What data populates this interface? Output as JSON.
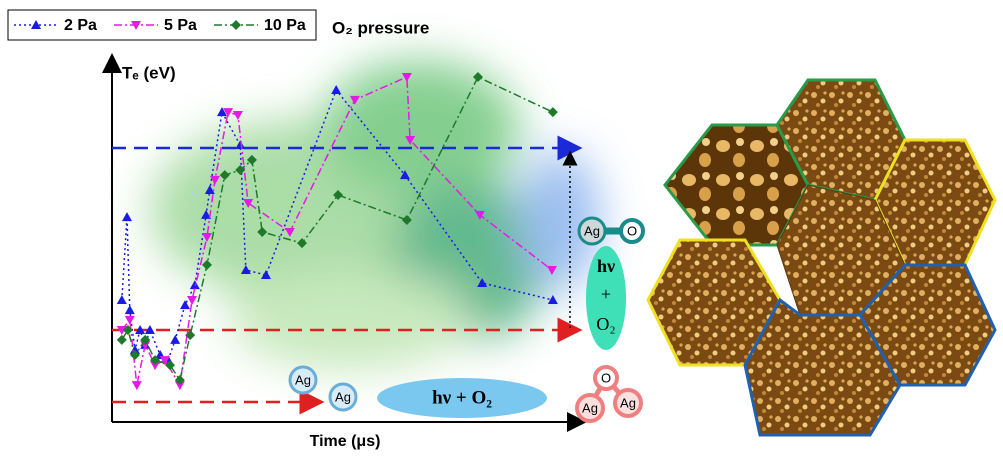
{
  "chart_data": {
    "type": "line",
    "legend_title": "O₂ pressure",
    "y_label": "Tₑ (eV)",
    "x_label": "Time (μs)",
    "xlim": [
      0,
      100
    ],
    "ylim": [
      0,
      100
    ],
    "series": [
      {
        "name": "2 Pa",
        "color": "#1a1ae6",
        "marker": "triangle-up",
        "x": [
          2.1,
          3.2,
          3.8,
          4.9,
          6.0,
          7.1,
          8.1,
          10.3,
          12.0,
          13.5,
          15.6,
          17.7,
          20.1,
          20.9,
          23.5,
          27.4,
          28.6,
          32.9,
          47.9,
          62.6,
          79.1,
          94.2
        ],
        "values": [
          33.7,
          56.6,
          30.9,
          19.9,
          25.4,
          21.3,
          25.4,
          18.5,
          17.1,
          22.7,
          32.3,
          37.8,
          57.2,
          64.1,
          85.6,
          76.5,
          42.0,
          40.6,
          91.7,
          68.2,
          38.4,
          33.7
        ]
      },
      {
        "name": "5 Pa",
        "color": "#e619e6",
        "marker": "triangle-down",
        "x": [
          2.1,
          3.8,
          5.3,
          7.1,
          9.2,
          11.3,
          14.5,
          17.1,
          20.3,
          22.0,
          24.8,
          26.9,
          29.1,
          38.0,
          51.9,
          63.0,
          63.7,
          78.6,
          94.0
        ],
        "values": [
          25.4,
          28.2,
          10.2,
          21.3,
          15.7,
          17.1,
          10.2,
          33.7,
          51.1,
          66.9,
          85.6,
          84.8,
          60.5,
          52.5,
          89.0,
          95.3,
          77.9,
          57.2,
          42.0
        ]
      },
      {
        "name": "10 Pa",
        "color": "#1e7a2a",
        "marker": "diamond",
        "x": [
          2.1,
          3.4,
          4.9,
          7.1,
          9.2,
          12.4,
          14.5,
          16.7,
          20.3,
          24.1,
          27.4,
          29.9,
          32.1,
          40.6,
          48.3,
          63.0,
          78.2,
          94.2
        ],
        "values": [
          22.7,
          25.4,
          18.5,
          22.7,
          17.1,
          15.7,
          11.6,
          24.0,
          43.4,
          68.2,
          69.6,
          72.4,
          52.5,
          49.4,
          62.7,
          55.8,
          95.3,
          85.6
        ]
      }
    ]
  },
  "annotations": {
    "ag": "Ag",
    "o": "O",
    "hv": "hν",
    "plus": "+",
    "o2": "O₂",
    "hv_o2": "hν + O₂"
  }
}
